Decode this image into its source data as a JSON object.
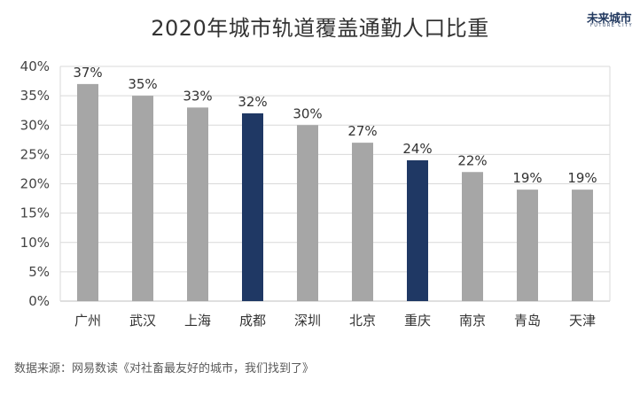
{
  "title": "2020年城市轨道覆盖通勤人口比重",
  "logo": {
    "main": "未来城市",
    "sub": "FUTURE CITY"
  },
  "source": "数据来源：网易数读《对社畜最友好的城市，我们找到了》",
  "colors": {
    "default_bar": "#a6a6a6",
    "highlight_bar": "#1f3864",
    "grid": "#d9d9d9",
    "axis": "#bfbfbf"
  },
  "chart_data": {
    "type": "bar",
    "categories": [
      "广州",
      "武汉",
      "上海",
      "成都",
      "深圳",
      "北京",
      "重庆",
      "南京",
      "青岛",
      "天津"
    ],
    "values": [
      37,
      35,
      33,
      32,
      30,
      27,
      24,
      22,
      19,
      19
    ],
    "data_labels": [
      "37%",
      "35%",
      "33%",
      "32%",
      "30%",
      "27%",
      "24%",
      "22%",
      "19%",
      "19%"
    ],
    "highlight": [
      false,
      false,
      false,
      true,
      false,
      false,
      true,
      false,
      false,
      false
    ],
    "ylim": [
      0,
      40
    ],
    "yticks": [
      0,
      5,
      10,
      15,
      20,
      25,
      30,
      35,
      40
    ],
    "ytick_labels": [
      "0%",
      "5%",
      "10%",
      "15%",
      "20%",
      "25%",
      "30%",
      "35%",
      "40%"
    ],
    "xlabel": "",
    "ylabel": "",
    "grid": true,
    "legend": "none"
  }
}
